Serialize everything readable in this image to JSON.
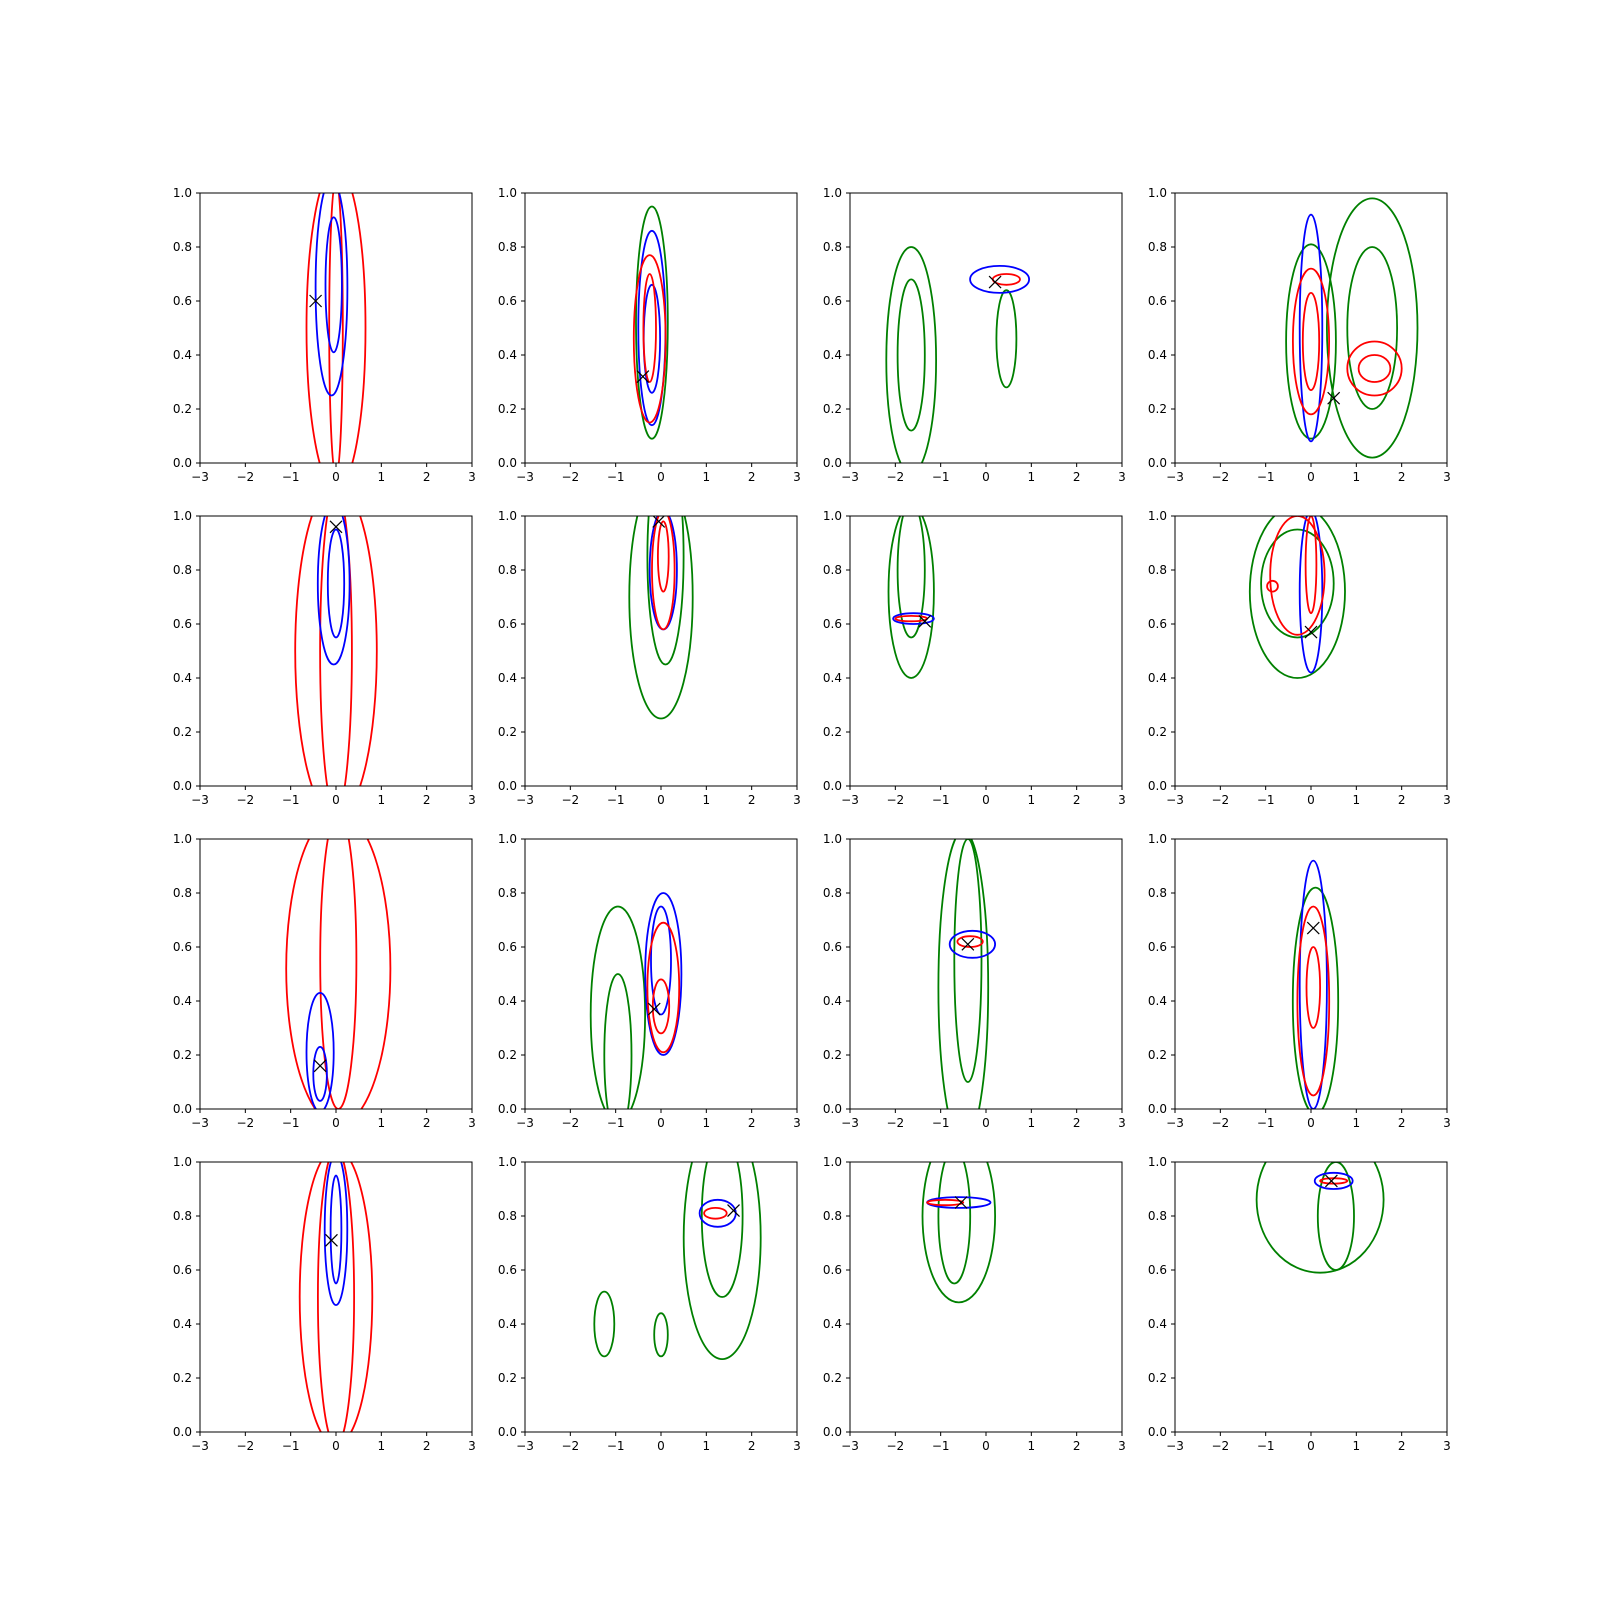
{
  "chart_data": {
    "type": "contour",
    "grid": false,
    "layout": "4x4 grid of subplots",
    "xlim": [
      -3,
      3
    ],
    "ylim": [
      0,
      1
    ],
    "xticks": [
      "−3",
      "−2",
      "−1",
      "0",
      "1",
      "2",
      "3"
    ],
    "xtick_values": [
      -3,
      -2,
      -1,
      0,
      1,
      2,
      3
    ],
    "yticks": [
      "0.0",
      "0.2",
      "0.4",
      "0.6",
      "0.8",
      "1.0"
    ],
    "ytick_values": [
      0,
      0.2,
      0.4,
      0.6,
      0.8,
      1.0
    ],
    "colors": {
      "red": "#ff0000",
      "blue": "#0000ff",
      "green": "#008000",
      "marker": "#000000"
    },
    "marker_symbol": "x",
    "panels": [
      {
        "marker": [
          -0.45,
          0.6
        ],
        "contours": [
          {
            "color": "red",
            "center": [
              0.0,
              0.5
            ],
            "rx": 0.65,
            "ry": 0.6
          },
          {
            "color": "red",
            "center": [
              0.0,
              0.5
            ],
            "rx": 0.15,
            "ry": 0.55
          },
          {
            "color": "blue",
            "center": [
              -0.1,
              0.65
            ],
            "rx": 0.35,
            "ry": 0.4
          },
          {
            "color": "blue",
            "center": [
              -0.05,
              0.66
            ],
            "rx": 0.18,
            "ry": 0.25
          }
        ]
      },
      {
        "marker": [
          -0.4,
          0.32
        ],
        "contours": [
          {
            "color": "green",
            "center": [
              -0.2,
              0.52
            ],
            "rx": 0.35,
            "ry": 0.43
          },
          {
            "color": "blue",
            "center": [
              -0.2,
              0.5
            ],
            "rx": 0.3,
            "ry": 0.36
          },
          {
            "color": "blue",
            "center": [
              -0.2,
              0.46
            ],
            "rx": 0.18,
            "ry": 0.2
          },
          {
            "color": "red",
            "center": [
              -0.25,
              0.46
            ],
            "rx": 0.35,
            "ry": 0.31
          },
          {
            "color": "red",
            "center": [
              -0.25,
              0.5
            ],
            "rx": 0.14,
            "ry": 0.2
          }
        ]
      },
      {
        "marker": [
          0.2,
          0.67
        ],
        "contours": [
          {
            "color": "green",
            "center": [
              -1.65,
              0.38
            ],
            "rx": 0.55,
            "ry": 0.42
          },
          {
            "color": "green",
            "center": [
              -1.65,
              0.4
            ],
            "rx": 0.3,
            "ry": 0.28
          },
          {
            "color": "green",
            "center": [
              0.45,
              0.46
            ],
            "rx": 0.22,
            "ry": 0.18
          },
          {
            "color": "blue",
            "center": [
              0.3,
              0.68
            ],
            "rx": 0.65,
            "ry": 0.05
          },
          {
            "color": "red",
            "center": [
              0.45,
              0.68
            ],
            "rx": 0.3,
            "ry": 0.02
          }
        ]
      },
      {
        "marker": [
          0.5,
          0.24
        ],
        "contours": [
          {
            "color": "green",
            "center": [
              1.35,
              0.5
            ],
            "rx": 1.0,
            "ry": 0.48
          },
          {
            "color": "green",
            "center": [
              1.35,
              0.5
            ],
            "rx": 0.55,
            "ry": 0.3
          },
          {
            "color": "green",
            "center": [
              0.0,
              0.45
            ],
            "rx": 0.55,
            "ry": 0.36
          },
          {
            "color": "blue",
            "center": [
              0.0,
              0.5
            ],
            "rx": 0.25,
            "ry": 0.42
          },
          {
            "color": "red",
            "center": [
              0.0,
              0.45
            ],
            "rx": 0.4,
            "ry": 0.27
          },
          {
            "color": "red",
            "center": [
              0.0,
              0.45
            ],
            "rx": 0.18,
            "ry": 0.18
          },
          {
            "color": "red",
            "center": [
              1.4,
              0.35
            ],
            "rx": 0.6,
            "ry": 0.1
          },
          {
            "color": "red",
            "center": [
              1.4,
              0.35
            ],
            "rx": 0.35,
            "ry": 0.05
          }
        ]
      },
      {
        "marker": [
          0.0,
          0.96
        ],
        "contours": [
          {
            "color": "red",
            "center": [
              0.0,
              0.5
            ],
            "rx": 0.9,
            "ry": 0.62
          },
          {
            "color": "red",
            "center": [
              0.0,
              0.5
            ],
            "rx": 0.35,
            "ry": 0.6
          },
          {
            "color": "blue",
            "center": [
              -0.05,
              0.75
            ],
            "rx": 0.35,
            "ry": 0.3
          },
          {
            "color": "blue",
            "center": [
              0.0,
              0.75
            ],
            "rx": 0.18,
            "ry": 0.2
          }
        ]
      },
      {
        "marker": [
          -0.05,
          0.98
        ],
        "contours": [
          {
            "color": "green",
            "center": [
              0.0,
              0.7
            ],
            "rx": 0.7,
            "ry": 0.45
          },
          {
            "color": "green",
            "center": [
              0.1,
              0.85
            ],
            "rx": 0.4,
            "ry": 0.4
          },
          {
            "color": "blue",
            "center": [
              0.05,
              0.8
            ],
            "rx": 0.3,
            "ry": 0.22
          },
          {
            "color": "red",
            "center": [
              0.05,
              0.8
            ],
            "rx": 0.25,
            "ry": 0.22
          },
          {
            "color": "red",
            "center": [
              0.05,
              0.85
            ],
            "rx": 0.12,
            "ry": 0.13
          }
        ]
      },
      {
        "marker": [
          -1.35,
          0.61
        ],
        "contours": [
          {
            "color": "green",
            "center": [
              -1.65,
              0.72
            ],
            "rx": 0.5,
            "ry": 0.32
          },
          {
            "color": "green",
            "center": [
              -1.65,
              0.8
            ],
            "rx": 0.3,
            "ry": 0.25
          },
          {
            "color": "blue",
            "center": [
              -1.6,
              0.62
            ],
            "rx": 0.45,
            "ry": 0.02
          },
          {
            "color": "red",
            "center": [
              -1.65,
              0.62
            ],
            "rx": 0.35,
            "ry": 0.01
          }
        ]
      },
      {
        "marker": [
          0.0,
          0.57
        ],
        "contours": [
          {
            "color": "green",
            "center": [
              -0.3,
              0.72
            ],
            "rx": 1.05,
            "ry": 0.32
          },
          {
            "color": "green",
            "center": [
              -0.3,
              0.75
            ],
            "rx": 0.8,
            "ry": 0.2
          },
          {
            "color": "blue",
            "center": [
              0.0,
              0.72
            ],
            "rx": 0.25,
            "ry": 0.3
          },
          {
            "color": "red",
            "center": [
              -0.3,
              0.78
            ],
            "rx": 0.6,
            "ry": 0.22
          },
          {
            "color": "red",
            "center": [
              0.0,
              0.82
            ],
            "rx": 0.12,
            "ry": 0.18
          },
          {
            "color": "red",
            "center": [
              -0.85,
              0.74
            ],
            "rx": 0.12,
            "ry": 0.02
          }
        ]
      },
      {
        "marker": [
          -0.35,
          0.16
        ],
        "contours": [
          {
            "color": "red",
            "center": [
              0.05,
              0.52
            ],
            "rx": 1.15,
            "ry": 0.58
          },
          {
            "color": "red",
            "center": [
              0.05,
              0.55
            ],
            "rx": 0.4,
            "ry": 0.55
          },
          {
            "color": "blue",
            "center": [
              -0.35,
              0.21
            ],
            "rx": 0.3,
            "ry": 0.22
          },
          {
            "color": "blue",
            "center": [
              -0.35,
              0.13
            ],
            "rx": 0.15,
            "ry": 0.1
          }
        ]
      },
      {
        "marker": [
          -0.15,
          0.37
        ],
        "contours": [
          {
            "color": "green",
            "center": [
              -0.95,
              0.35
            ],
            "rx": 0.6,
            "ry": 0.4
          },
          {
            "color": "green",
            "center": [
              -0.95,
              0.2
            ],
            "rx": 0.3,
            "ry": 0.3
          },
          {
            "color": "blue",
            "center": [
              0.05,
              0.5
            ],
            "rx": 0.4,
            "ry": 0.3
          },
          {
            "color": "blue",
            "center": [
              0.0,
              0.55
            ],
            "rx": 0.22,
            "ry": 0.2
          },
          {
            "color": "red",
            "center": [
              0.05,
              0.45
            ],
            "rx": 0.35,
            "ry": 0.24
          },
          {
            "color": "red",
            "center": [
              0.0,
              0.38
            ],
            "rx": 0.18,
            "ry": 0.1
          }
        ]
      },
      {
        "marker": [
          -0.4,
          0.61
        ],
        "contours": [
          {
            "color": "green",
            "center": [
              -0.5,
              0.45
            ],
            "rx": 0.55,
            "ry": 0.58
          },
          {
            "color": "green",
            "center": [
              -0.4,
              0.55
            ],
            "rx": 0.3,
            "ry": 0.45
          },
          {
            "color": "blue",
            "center": [
              -0.3,
              0.61
            ],
            "rx": 0.5,
            "ry": 0.05
          },
          {
            "color": "red",
            "center": [
              -0.35,
              0.62
            ],
            "rx": 0.28,
            "ry": 0.02
          }
        ]
      },
      {
        "marker": [
          0.05,
          0.67
        ],
        "contours": [
          {
            "color": "green",
            "center": [
              0.1,
              0.4
            ],
            "rx": 0.5,
            "ry": 0.42
          },
          {
            "color": "blue",
            "center": [
              0.05,
              0.46
            ],
            "rx": 0.3,
            "ry": 0.46
          },
          {
            "color": "red",
            "center": [
              0.05,
              0.4
            ],
            "rx": 0.35,
            "ry": 0.35
          },
          {
            "color": "red",
            "center": [
              0.05,
              0.45
            ],
            "rx": 0.15,
            "ry": 0.15
          }
        ]
      },
      {
        "marker": [
          -0.1,
          0.71
        ],
        "contours": [
          {
            "color": "red",
            "center": [
              0.0,
              0.5
            ],
            "rx": 0.8,
            "ry": 0.55
          },
          {
            "color": "red",
            "center": [
              0.0,
              0.5
            ],
            "rx": 0.4,
            "ry": 0.55
          },
          {
            "color": "blue",
            "center": [
              0.0,
              0.75
            ],
            "rx": 0.25,
            "ry": 0.28
          },
          {
            "color": "blue",
            "center": [
              0.0,
              0.75
            ],
            "rx": 0.12,
            "ry": 0.2
          }
        ]
      },
      {
        "marker": [
          1.6,
          0.82
        ],
        "contours": [
          {
            "color": "green",
            "center": [
              1.35,
              0.72
            ],
            "rx": 0.85,
            "ry": 0.45
          },
          {
            "color": "green",
            "center": [
              1.35,
              0.8
            ],
            "rx": 0.45,
            "ry": 0.3
          },
          {
            "color": "green",
            "center": [
              -1.25,
              0.4
            ],
            "rx": 0.22,
            "ry": 0.12
          },
          {
            "color": "green",
            "center": [
              0.0,
              0.36
            ],
            "rx": 0.15,
            "ry": 0.08
          },
          {
            "color": "blue",
            "center": [
              1.25,
              0.81
            ],
            "rx": 0.4,
            "ry": 0.05
          },
          {
            "color": "red",
            "center": [
              1.2,
              0.81
            ],
            "rx": 0.25,
            "ry": 0.02
          }
        ]
      },
      {
        "marker": [
          -0.55,
          0.85
        ],
        "contours": [
          {
            "color": "green",
            "center": [
              -0.6,
              0.8
            ],
            "rx": 0.8,
            "ry": 0.32
          },
          {
            "color": "green",
            "center": [
              -0.7,
              0.8
            ],
            "rx": 0.35,
            "ry": 0.25
          },
          {
            "color": "blue",
            "center": [
              -0.6,
              0.85
            ],
            "rx": 0.7,
            "ry": 0.02
          },
          {
            "color": "red",
            "center": [
              -0.9,
              0.85
            ],
            "rx": 0.4,
            "ry": 0.01
          }
        ]
      },
      {
        "marker": [
          0.45,
          0.93
        ],
        "contours": [
          {
            "color": "green",
            "center": [
              0.2,
              0.86
            ],
            "rx": 1.4,
            "ry": 0.27
          },
          {
            "color": "green",
            "center": [
              0.55,
              0.8
            ],
            "rx": 0.4,
            "ry": 0.2
          },
          {
            "color": "blue",
            "center": [
              0.5,
              0.93
            ],
            "rx": 0.42,
            "ry": 0.03
          },
          {
            "color": "red",
            "center": [
              0.5,
              0.93
            ],
            "rx": 0.3,
            "ry": 0.01
          }
        ]
      }
    ]
  }
}
